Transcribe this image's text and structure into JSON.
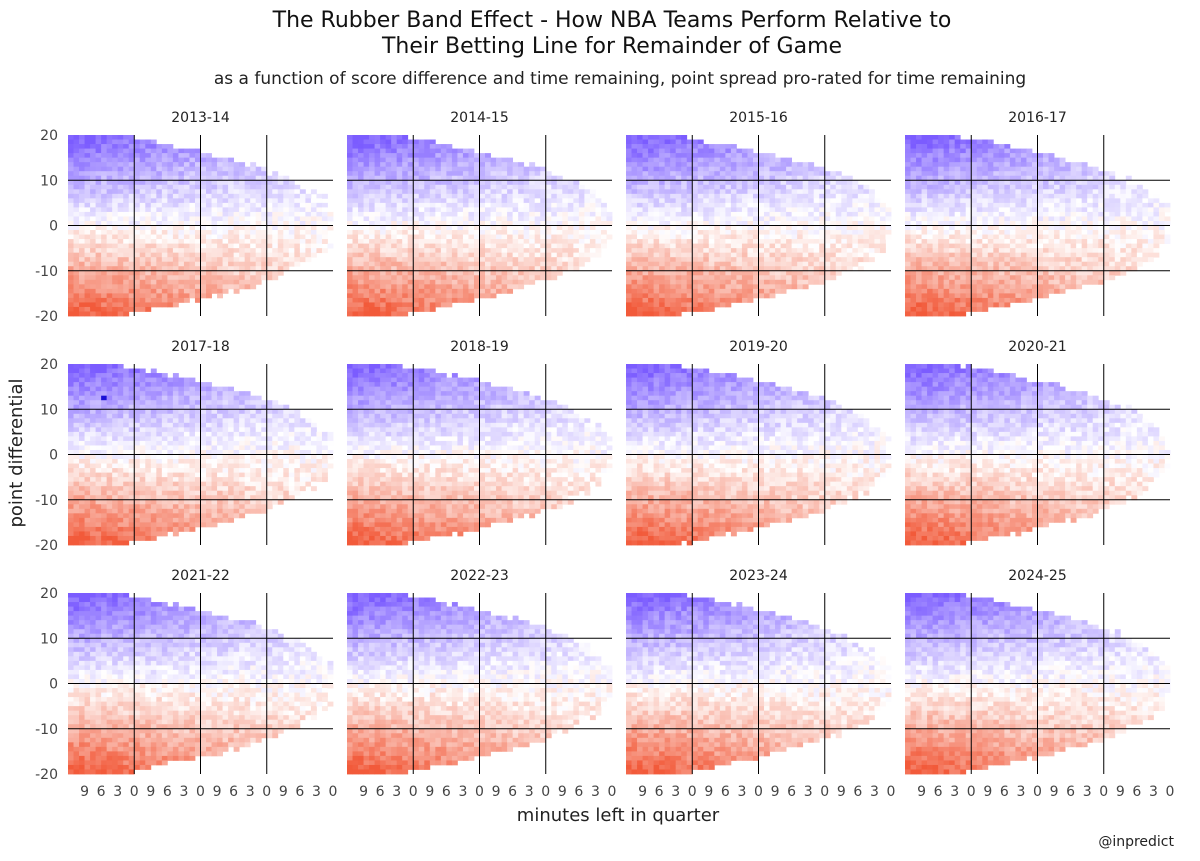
{
  "chart_data": {
    "type": "heatmap",
    "title_lines": [
      "The Rubber Band Effect - How NBA Teams Perform Relative to",
      "Their Betting Line for Remainder of Game"
    ],
    "subtitle": "as a function of score difference and time remaining, point spread pro-rated for time remaining",
    "xlabel": "minutes left in quarter",
    "ylabel": "point differential",
    "credit": "@inpredict",
    "panels": [
      "2013-14",
      "2014-15",
      "2015-16",
      "2016-17",
      "2017-18",
      "2018-19",
      "2019-20",
      "2020-21",
      "2021-22",
      "2022-23",
      "2023-24",
      "2024-25"
    ],
    "facet_layout": "3 rows x 4 columns",
    "x_domain": [
      0,
      48
    ],
    "x_quarter_ticks": [
      "9",
      "6",
      "3",
      "0"
    ],
    "y_ticks": [
      20,
      10,
      0,
      -10,
      -20
    ],
    "ylim": [
      -20,
      20
    ],
    "color_scale": {
      "positive": "#7b5cff",
      "zero": "#ffffff",
      "negative": "#f25a3a",
      "extreme": "#1a0fd6"
    },
    "grid": "black lines at quarter ends and at point differential -10, 0, 10"
  }
}
